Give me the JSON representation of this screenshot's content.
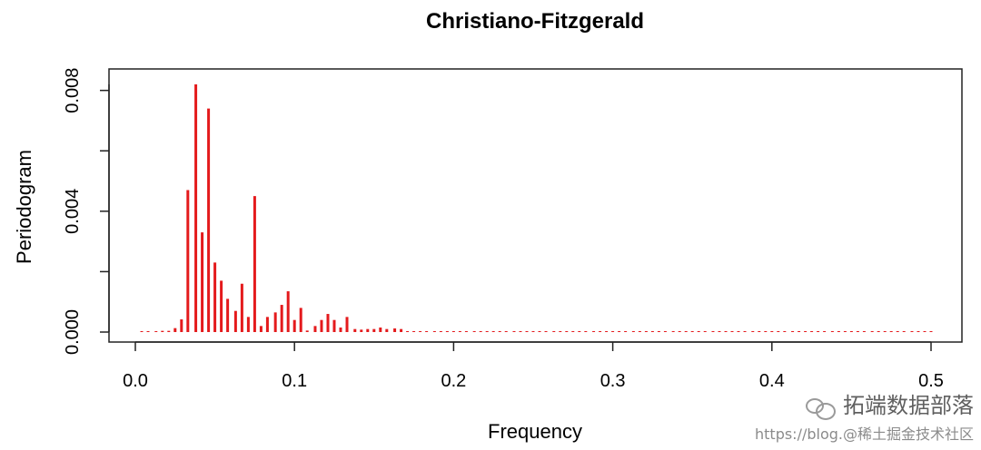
{
  "chart_data": {
    "type": "bar",
    "title": "Christiano-Fitzgerald",
    "xlabel": "Frequency",
    "ylabel": "Periodogram",
    "xlim": [
      0.0,
      0.5
    ],
    "ylim": [
      0.0,
      0.0082
    ],
    "x_ticks": [
      "0.0",
      "0.1",
      "0.2",
      "0.3",
      "0.4",
      "0.5"
    ],
    "y_ticks": [
      "0.000",
      "0.004",
      "0.008"
    ],
    "series": [
      {
        "color": "#e41a1c",
        "x": [
          0.004,
          0.008,
          0.013,
          0.017,
          0.021,
          0.025,
          0.029,
          0.033,
          0.038,
          0.042,
          0.046,
          0.05,
          0.054,
          0.058,
          0.063,
          0.067,
          0.071,
          0.075,
          0.079,
          0.083,
          0.088,
          0.092,
          0.096,
          0.1,
          0.104,
          0.108,
          0.113,
          0.117,
          0.121,
          0.125,
          0.129,
          0.133,
          0.138,
          0.142,
          0.146,
          0.15,
          0.154,
          0.158,
          0.163,
          0.167,
          0.171,
          0.175,
          0.179,
          0.183,
          0.188,
          0.192,
          0.196,
          0.2,
          0.204,
          0.208,
          0.213,
          0.217,
          0.221,
          0.225,
          0.229,
          0.233,
          0.238,
          0.242,
          0.246,
          0.25,
          0.254,
          0.258,
          0.263,
          0.267,
          0.271,
          0.275,
          0.279,
          0.283,
          0.288,
          0.292,
          0.296,
          0.3,
          0.304,
          0.308,
          0.313,
          0.317,
          0.321,
          0.325,
          0.329,
          0.333,
          0.338,
          0.342,
          0.346,
          0.35,
          0.354,
          0.358,
          0.363,
          0.367,
          0.371,
          0.375,
          0.379,
          0.383,
          0.388,
          0.392,
          0.396,
          0.4,
          0.404,
          0.408,
          0.413,
          0.417,
          0.421,
          0.425,
          0.429,
          0.433,
          0.438,
          0.442,
          0.446,
          0.45,
          0.454,
          0.458,
          0.463,
          0.467,
          0.471,
          0.475,
          0.479,
          0.483,
          0.488,
          0.492,
          0.496,
          0.5
        ],
        "values": [
          3e-05,
          3e-05,
          3e-05,
          4e-05,
          4e-05,
          0.00013,
          0.00042,
          0.0047,
          0.0082,
          0.0033,
          0.0074,
          0.0023,
          0.0017,
          0.0011,
          0.0007,
          0.0016,
          0.0005,
          0.0045,
          0.0002,
          0.0005,
          0.00065,
          0.0009,
          0.00135,
          0.0004,
          0.0008,
          5e-05,
          0.0002,
          0.0004,
          0.0006,
          0.0004,
          0.00015,
          0.0005,
          0.0001,
          8e-05,
          0.0001,
          0.0001,
          0.00015,
          0.0001,
          0.00012,
          0.0001,
          3e-05,
          3e-05,
          3e-05,
          3e-05,
          3e-05,
          3e-05,
          3e-05,
          3e-05,
          3e-05,
          3e-05,
          3e-05,
          3e-05,
          3e-05,
          3e-05,
          3e-05,
          3e-05,
          3e-05,
          3e-05,
          3e-05,
          3e-05,
          3e-05,
          3e-05,
          3e-05,
          3e-05,
          3e-05,
          3e-05,
          3e-05,
          3e-05,
          3e-05,
          3e-05,
          3e-05,
          3e-05,
          3e-05,
          3e-05,
          3e-05,
          3e-05,
          3e-05,
          3e-05,
          3e-05,
          3e-05,
          3e-05,
          3e-05,
          3e-05,
          3e-05,
          3e-05,
          3e-05,
          3e-05,
          3e-05,
          3e-05,
          3e-05,
          3e-05,
          3e-05,
          3e-05,
          3e-05,
          3e-05,
          3e-05,
          3e-05,
          3e-05,
          3e-05,
          3e-05,
          3e-05,
          3e-05,
          3e-05,
          3e-05,
          3e-05,
          3e-05,
          3e-05,
          3e-05,
          3e-05,
          3e-05,
          3e-05,
          3e-05,
          3e-05,
          3e-05,
          3e-05,
          3e-05,
          3e-05,
          3e-05,
          3e-05,
          3e-05
        ]
      }
    ]
  },
  "watermark": {
    "brand": "拓端数据部落",
    "site": "https://blog.@稀土掘金技术社区"
  }
}
